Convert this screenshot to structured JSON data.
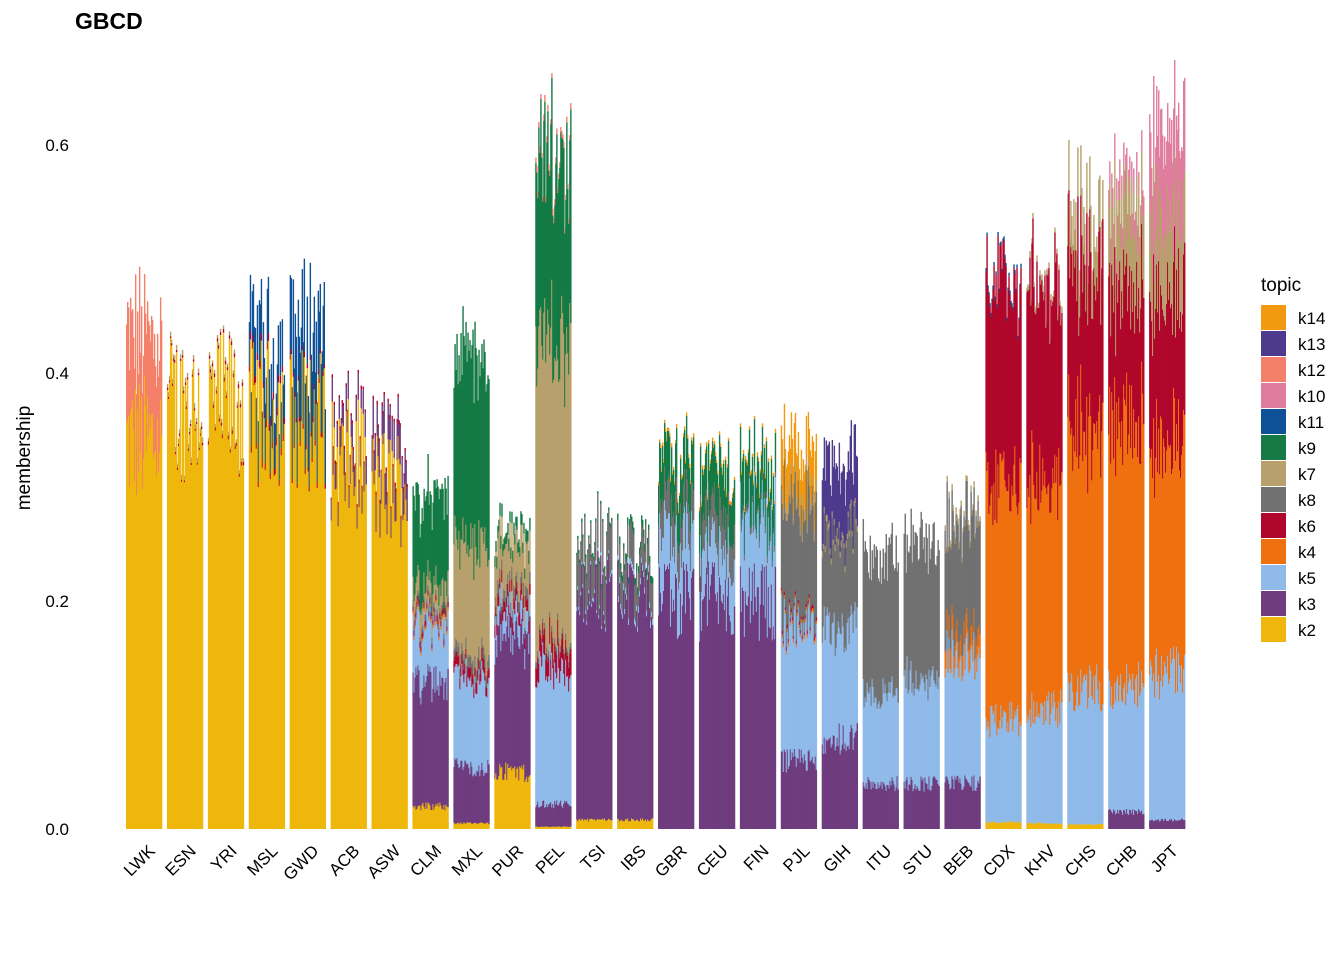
{
  "chart_data": {
    "type": "bar",
    "subtype": "stacked-structure-plot",
    "title": "GBCD",
    "ylabel": "membership",
    "xlabel": "",
    "ylim": [
      0,
      0.65
    ],
    "yticks": [
      0.0,
      0.2,
      0.4,
      0.6
    ],
    "ytick_labels": [
      "0.0",
      "0.2",
      "0.4",
      "0.6"
    ],
    "grid": false,
    "legend_title": "topic",
    "legend_position": "right",
    "series": [
      {
        "name": "k14",
        "color": "#F2990F"
      },
      {
        "name": "k13",
        "color": "#4E3A8C"
      },
      {
        "name": "k12",
        "color": "#F4806A"
      },
      {
        "name": "k10",
        "color": "#E07C9E"
      },
      {
        "name": "k11",
        "color": "#0F5196"
      },
      {
        "name": "k9",
        "color": "#157A45"
      },
      {
        "name": "k7",
        "color": "#B8A06C"
      },
      {
        "name": "k8",
        "color": "#717171"
      },
      {
        "name": "k6",
        "color": "#B0062B"
      },
      {
        "name": "k4",
        "color": "#EE700F"
      },
      {
        "name": "k5",
        "color": "#8FBAEA"
      },
      {
        "name": "k3",
        "color": "#6F3D7E"
      },
      {
        "name": "k2",
        "color": "#EFB70D"
      }
    ],
    "stack_order_bottom_to_top": [
      "k2",
      "k3",
      "k5",
      "k4",
      "k6",
      "k8",
      "k7",
      "k9",
      "k11",
      "k10",
      "k12",
      "k13",
      "k14"
    ],
    "categories": [
      "LWK",
      "ESN",
      "YRI",
      "MSL",
      "GWD",
      "ACB",
      "ASW",
      "CLM",
      "MXL",
      "PUR",
      "PEL",
      "TSI",
      "IBS",
      "GBR",
      "CEU",
      "FIN",
      "PJL",
      "GIH",
      "ITU",
      "STU",
      "BEB",
      "CDX",
      "KHV",
      "CHS",
      "CHB",
      "JPT"
    ],
    "groups": [
      {
        "name": "LWK",
        "values": {
          "k2": 0.34,
          "k12": 0.09
        }
      },
      {
        "name": "ESN",
        "values": {
          "k2": 0.37,
          "k6": 0.002,
          "k7": 0.004
        }
      },
      {
        "name": "YRI",
        "values": {
          "k2": 0.37,
          "k6": 0.003,
          "k7": 0.003
        }
      },
      {
        "name": "MSL",
        "values": {
          "k2": 0.365,
          "k6": 0.006,
          "k11": 0.045
        }
      },
      {
        "name": "GWD",
        "values": {
          "k2": 0.36,
          "k6": 0.004,
          "k11": 0.07
        }
      },
      {
        "name": "ACB",
        "values": {
          "k2": 0.32,
          "k3": 0.02,
          "k6": 0.003
        }
      },
      {
        "name": "ASW",
        "values": {
          "k2": 0.3,
          "k3": 0.03,
          "k6": 0.003
        }
      },
      {
        "name": "CLM",
        "values": {
          "k2": 0.02,
          "k3": 0.11,
          "k5": 0.05,
          "k4": 0.003,
          "k6": 0.005,
          "k8": 0.005,
          "k7": 0.02,
          "k9": 0.08
        }
      },
      {
        "name": "MXL",
        "values": {
          "k2": 0.005,
          "k3": 0.05,
          "k5": 0.08,
          "k6": 0.01,
          "k8": 0.01,
          "k7": 0.1,
          "k9": 0.16
        }
      },
      {
        "name": "PUR",
        "values": {
          "k2": 0.05,
          "k3": 0.12,
          "k5": 0.02,
          "k6": 0.01,
          "k8": 0.01,
          "k7": 0.04,
          "k9": 0.01
        }
      },
      {
        "name": "PEL",
        "values": {
          "k2": 0.002,
          "k3": 0.02,
          "k5": 0.12,
          "k6": 0.02,
          "k8": 0.005,
          "k7": 0.26,
          "k9": 0.16,
          "k12": 0.005
        }
      },
      {
        "name": "TSI",
        "values": {
          "k2": 0.008,
          "k3": 0.2,
          "k5": 0.003,
          "k8": 0.04,
          "k9": 0.003
        }
      },
      {
        "name": "IBS",
        "values": {
          "k2": 0.008,
          "k3": 0.2,
          "k5": 0.005,
          "k8": 0.03,
          "k9": 0.006
        }
      },
      {
        "name": "GBR",
        "values": {
          "k14": 0.003,
          "k3": 0.2,
          "k5": 0.05,
          "k8": 0.03,
          "k9": 0.04
        }
      },
      {
        "name": "CEU",
        "values": {
          "k14": 0.003,
          "k3": 0.2,
          "k5": 0.04,
          "k8": 0.03,
          "k9": 0.04
        }
      },
      {
        "name": "FIN",
        "values": {
          "k14": 0.003,
          "k3": 0.2,
          "k5": 0.07,
          "k8": 0.005,
          "k9": 0.04
        }
      },
      {
        "name": "PJL",
        "values": {
          "k14": 0.04,
          "k3": 0.06,
          "k5": 0.12,
          "k4": 0.003,
          "k6": 0.003,
          "k8": 0.1,
          "k7": 0.01
        }
      },
      {
        "name": "GIH",
        "values": {
          "k13": 0.06,
          "k3": 0.08,
          "k5": 0.1,
          "k8": 0.08,
          "k7": 0.005
        }
      },
      {
        "name": "ITU",
        "values": {
          "k3": 0.04,
          "k5": 0.08,
          "k8": 0.12
        }
      },
      {
        "name": "STU",
        "values": {
          "k3": 0.04,
          "k5": 0.09,
          "k8": 0.12
        }
      },
      {
        "name": "BEB",
        "values": {
          "k3": 0.04,
          "k5": 0.11,
          "k4": 0.02,
          "k8": 0.1,
          "k7": 0.005
        }
      },
      {
        "name": "CDX",
        "values": {
          "k2": 0.006,
          "k5": 0.09,
          "k4": 0.2,
          "k6": 0.18,
          "k11": 0.003
        }
      },
      {
        "name": "KHV",
        "values": {
          "k2": 0.005,
          "k5": 0.1,
          "k4": 0.21,
          "k6": 0.17,
          "k7": 0.005
        }
      },
      {
        "name": "CHS",
        "values": {
          "k2": 0.004,
          "k5": 0.12,
          "k4": 0.23,
          "k6": 0.14,
          "k7": 0.04
        }
      },
      {
        "name": "CHB",
        "values": {
          "k3": 0.015,
          "k5": 0.11,
          "k4": 0.23,
          "k6": 0.12,
          "k7": 0.07,
          "k10": 0.02
        }
      },
      {
        "name": "JPT",
        "values": {
          "k3": 0.008,
          "k5": 0.13,
          "k4": 0.2,
          "k6": 0.13,
          "k7": 0.07,
          "k10": 0.08
        }
      }
    ]
  }
}
